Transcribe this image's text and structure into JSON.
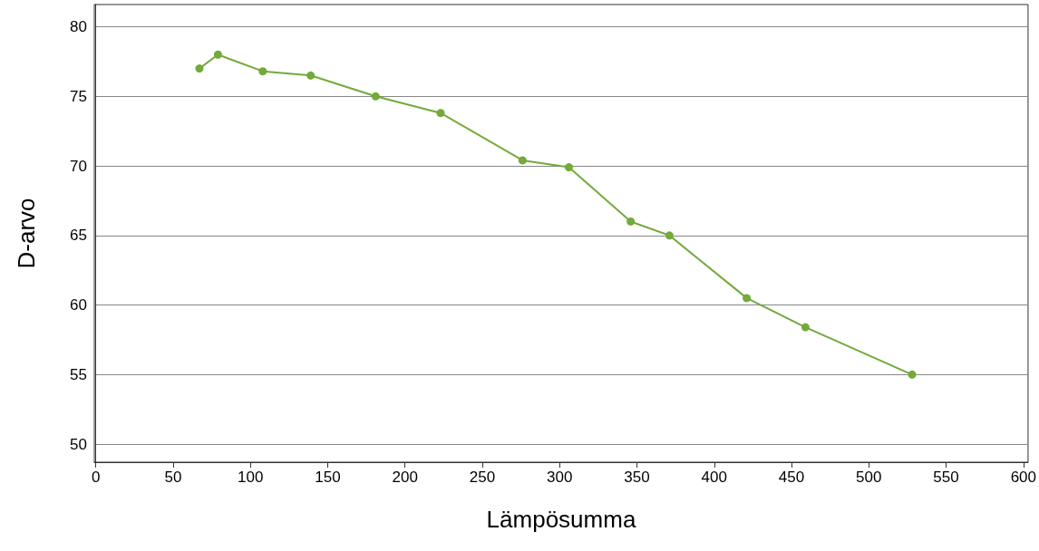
{
  "chart_data": {
    "type": "line",
    "xlabel": "Lämpösumma",
    "ylabel": "D-arvo",
    "x": [
      67,
      79,
      108,
      139,
      181,
      223,
      276,
      306,
      346,
      371,
      421,
      459,
      528
    ],
    "series": [
      {
        "color": "#73aa3a",
        "values": [
          77.0,
          78.0,
          76.8,
          76.5,
          75.0,
          73.8,
          70.4,
          69.9,
          66.0,
          65.0,
          60.5,
          58.4,
          55.0
        ]
      }
    ],
    "xlim": [
      -1,
      603
    ],
    "xticks": [
      0,
      50,
      100,
      150,
      200,
      250,
      300,
      350,
      400,
      450,
      500,
      550,
      600
    ],
    "ylim": [
      48.7,
      81.6
    ],
    "yticks": [
      50,
      55,
      60,
      65,
      70,
      75,
      80
    ],
    "grid": "y",
    "marker": "circle",
    "line_style": "solid"
  }
}
